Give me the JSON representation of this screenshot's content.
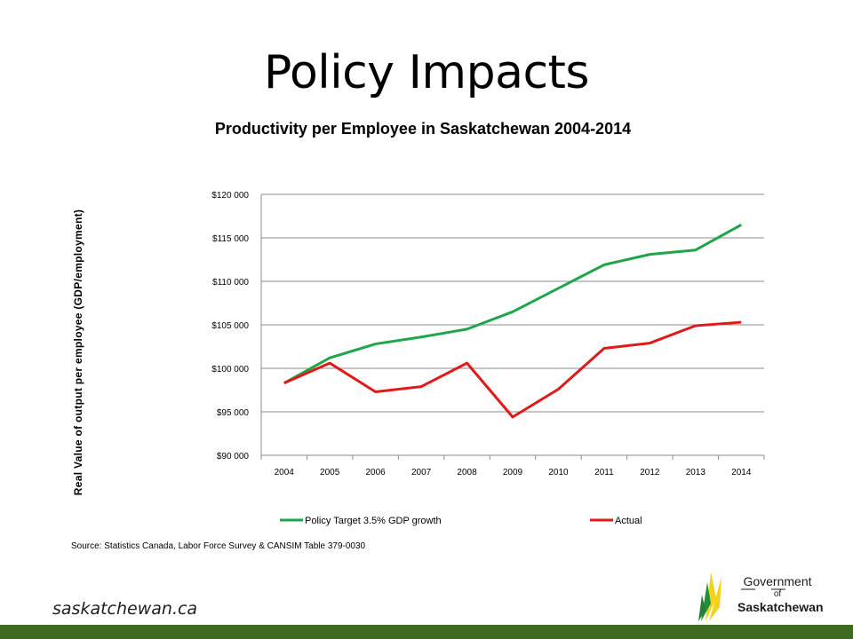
{
  "slide": {
    "title": "Policy Impacts",
    "source": "Source: Statistics Canada, Labor Force Survey & CANSIM Table 379-0030",
    "site": "saskatchewan.ca",
    "logo": {
      "line1": "Government",
      "line2": "of",
      "line3": "Saskatchewan"
    },
    "footer_color": "#3d6b22"
  },
  "chart_data": {
    "type": "line",
    "title": "Productivity per Employee in Saskatchewan 2004-2014",
    "xlabel": "",
    "ylabel": "Real Value of output per employee (GDP/employment)",
    "categories": [
      "2004",
      "2005",
      "2006",
      "2007",
      "2008",
      "2009",
      "2010",
      "2011",
      "2012",
      "2013",
      "2014"
    ],
    "ylim": [
      90000,
      120000
    ],
    "yticks": [
      90000,
      95000,
      100000,
      105000,
      110000,
      115000,
      120000
    ],
    "ytick_labels": [
      "$90 000",
      "$95 000",
      "$100 000",
      "$105 000",
      "$110 000",
      "$115 000",
      "$120 000"
    ],
    "grid": true,
    "legend_position": "bottom",
    "series": [
      {
        "name": "Policy Target 3.5% GDP growth",
        "color": "#1fa64b",
        "values": [
          98300,
          101200,
          102800,
          103600,
          104500,
          106500,
          109200,
          111900,
          113100,
          113600,
          116500
        ]
      },
      {
        "name": "Actual",
        "color": "#e01a1a",
        "values": [
          98300,
          100600,
          97300,
          97900,
          100600,
          94400,
          97600,
          102300,
          102900,
          104900,
          105300
        ]
      }
    ]
  }
}
